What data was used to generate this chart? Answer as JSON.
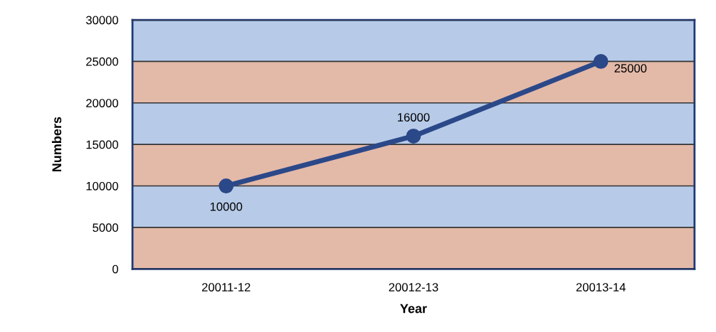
{
  "chart_data": {
    "type": "line",
    "xlabel": "Year",
    "ylabel": "Numbers",
    "categories": [
      "20011-12",
      "20012-13",
      "20013-14"
    ],
    "series": [
      {
        "color": "#2b4889",
        "values": [
          10000,
          16000,
          25000
        ]
      }
    ],
    "ylim": [
      0,
      30000
    ],
    "yticks": [
      0,
      5000,
      10000,
      15000,
      20000,
      25000,
      30000
    ],
    "grid": "y",
    "marker": "circle",
    "line_style": "solid",
    "data_labels": true,
    "bands": [
      {
        "axis": "y",
        "from": 0,
        "to": 5000,
        "color": "#e3b9a8"
      },
      {
        "axis": "y",
        "from": 5000,
        "to": 10000,
        "color": "#b7cbe8"
      },
      {
        "axis": "y",
        "from": 10000,
        "to": 15000,
        "color": "#e3b9a8"
      },
      {
        "axis": "y",
        "from": 15000,
        "to": 20000,
        "color": "#b7cbe8"
      },
      {
        "axis": "y",
        "from": 20000,
        "to": 25000,
        "color": "#e3b9a8"
      },
      {
        "axis": "y",
        "from": 25000,
        "to": 30000,
        "color": "#b7cbe8"
      }
    ]
  }
}
